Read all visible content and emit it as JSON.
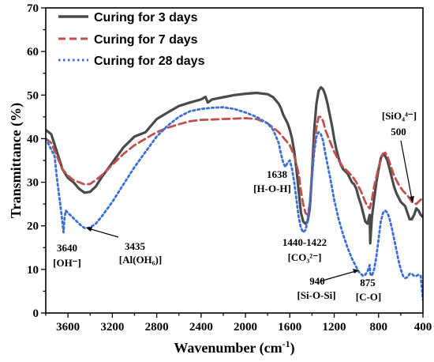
{
  "chart_data": {
    "type": "line",
    "xlabel": "Wavenumber (cm⁻¹)",
    "ylabel": "Transmittance (%)",
    "xlim": [
      3800,
      400
    ],
    "ylim": [
      0,
      70
    ],
    "x_reversed": true,
    "x_ticks": [
      3600,
      3200,
      2800,
      2400,
      2000,
      1600,
      1200,
      800,
      400
    ],
    "y_ticks": [
      0,
      10,
      20,
      30,
      40,
      50,
      60,
      70
    ],
    "grid": false,
    "legend_position": "top-left",
    "series": [
      {
        "name": "Curing for 3 days",
        "color": "#4a4a4a",
        "line_style": "solid",
        "x": [
          3800,
          3750,
          3700,
          3650,
          3600,
          3550,
          3500,
          3450,
          3400,
          3350,
          3300,
          3200,
          3100,
          3000,
          2900,
          2800,
          2700,
          2600,
          2500,
          2400,
          2360,
          2340,
          2300,
          2200,
          2100,
          2000,
          1900,
          1800,
          1750,
          1700,
          1680,
          1660,
          1640,
          1620,
          1600,
          1580,
          1560,
          1540,
          1520,
          1500,
          1480,
          1460,
          1440,
          1420,
          1400,
          1380,
          1360,
          1340,
          1320,
          1300,
          1280,
          1260,
          1240,
          1220,
          1200,
          1180,
          1160,
          1140,
          1120,
          1100,
          1080,
          1060,
          1040,
          1020,
          1000,
          980,
          960,
          940,
          920,
          900,
          880,
          875,
          860,
          840,
          820,
          800,
          780,
          760,
          740,
          720,
          700,
          680,
          660,
          640,
          620,
          600,
          580,
          560,
          540,
          520,
          500,
          480,
          460,
          440,
          420,
          400
        ],
        "values": [
          42,
          41,
          37,
          33,
          31,
          30,
          28.5,
          27.6,
          27.8,
          29,
          31,
          34.5,
          38,
          40.5,
          41.5,
          44.5,
          46,
          47.5,
          48.3,
          49,
          49.6,
          48.3,
          49,
          49.5,
          50,
          50.3,
          50.5,
          50.2,
          49.5,
          48,
          47,
          45.5,
          44.5,
          43.5,
          42,
          40,
          37,
          33,
          28,
          23,
          21,
          20.5,
          21,
          24,
          32,
          42,
          48,
          51,
          51.8,
          51.3,
          50,
          48,
          45.5,
          43,
          40,
          37.5,
          35.5,
          34,
          33,
          32.5,
          32,
          31,
          30,
          29.5,
          28.5,
          26.5,
          25,
          23,
          21,
          20.5,
          22.5,
          16,
          22,
          26,
          30,
          33,
          35.5,
          36.5,
          36,
          35,
          33,
          31,
          29,
          27.5,
          26.5,
          25.5,
          25,
          24.5,
          23,
          21.5,
          21.5,
          22.5,
          24,
          23.5,
          22.5,
          22
        ]
      },
      {
        "name": "Curing for 7 days",
        "color": "#c0504d",
        "line_style": "dashed",
        "x": [
          3800,
          3750,
          3700,
          3650,
          3600,
          3550,
          3500,
          3450,
          3400,
          3350,
          3300,
          3200,
          3100,
          3000,
          2900,
          2800,
          2700,
          2600,
          2500,
          2400,
          2300,
          2200,
          2100,
          2000,
          1900,
          1800,
          1750,
          1700,
          1650,
          1600,
          1560,
          1520,
          1500,
          1480,
          1460,
          1440,
          1420,
          1400,
          1380,
          1360,
          1340,
          1320,
          1300,
          1280,
          1240,
          1200,
          1160,
          1120,
          1080,
          1040,
          1000,
          960,
          920,
          900,
          880,
          860,
          840,
          800,
          760,
          740,
          720,
          700,
          660,
          620,
          580,
          540,
          500,
          460,
          420,
          400
        ],
        "values": [
          40,
          39,
          36,
          33,
          31.5,
          30.5,
          30,
          29.5,
          29.6,
          30.5,
          31.5,
          34,
          36.5,
          38.5,
          40,
          41.5,
          42.5,
          43.3,
          44,
          44.3,
          44.4,
          44.5,
          44.6,
          44.7,
          44.5,
          43.5,
          42.5,
          41.5,
          40,
          38.5,
          36,
          32,
          28,
          25,
          23,
          22.5,
          25,
          32,
          38,
          42.5,
          45,
          45,
          44,
          42,
          39.5,
          37,
          35,
          33.5,
          32.5,
          31.5,
          30,
          28,
          25.5,
          24.5,
          24,
          26,
          29,
          33.5,
          36.5,
          36.8,
          36,
          34.5,
          31.5,
          29.5,
          28,
          27,
          25.5,
          25,
          26,
          26.3
        ]
      },
      {
        "name": "Curing for 28 days",
        "color": "#3a6fd8",
        "line_style": "dotted",
        "x": [
          3800,
          3760,
          3720,
          3700,
          3680,
          3660,
          3640,
          3630,
          3620,
          3600,
          3560,
          3520,
          3480,
          3450,
          3435,
          3400,
          3350,
          3300,
          3200,
          3100,
          3000,
          2900,
          2800,
          2700,
          2600,
          2500,
          2400,
          2300,
          2200,
          2100,
          2000,
          1900,
          1800,
          1750,
          1700,
          1680,
          1660,
          1640,
          1620,
          1600,
          1580,
          1560,
          1540,
          1520,
          1500,
          1480,
          1460,
          1440,
          1420,
          1400,
          1380,
          1360,
          1340,
          1320,
          1300,
          1280,
          1240,
          1200,
          1160,
          1120,
          1080,
          1040,
          1000,
          980,
          960,
          940,
          920,
          900,
          880,
          875,
          860,
          840,
          820,
          800,
          780,
          760,
          740,
          720,
          700,
          680,
          660,
          640,
          620,
          600,
          580,
          560,
          540,
          520,
          500,
          480,
          460,
          440,
          420,
          400
        ],
        "values": [
          40,
          38,
          36,
          31,
          27,
          23,
          18.5,
          22,
          23.5,
          23,
          22,
          21,
          20,
          19.5,
          19.5,
          19.6,
          20.5,
          22,
          25.5,
          29.5,
          33.5,
          37,
          40.5,
          43,
          45,
          46.3,
          46.8,
          47.1,
          47.2,
          46.8,
          46,
          45,
          43.5,
          42,
          39,
          36.5,
          34.5,
          33.5,
          34.5,
          35,
          33,
          30,
          26,
          22,
          19.5,
          18.5,
          19,
          21,
          25,
          31,
          37,
          40.5,
          41.5,
          41,
          39.5,
          36.5,
          31.5,
          26,
          21.5,
          18,
          15,
          12.5,
          10.5,
          9.5,
          9,
          8.5,
          8.8,
          9.5,
          11,
          9,
          8.5,
          10,
          13,
          17,
          21,
          23,
          23.5,
          23,
          21.5,
          19.5,
          17,
          14.5,
          12,
          10,
          8.5,
          8,
          8.2,
          9,
          9,
          8.5,
          8.5,
          8.8,
          8.5,
          3
        ]
      }
    ],
    "annotations": [
      {
        "label": "3640",
        "sublabel": "[OH⁻]"
      },
      {
        "label": "3435",
        "sublabel": "[Al(OH₆)]"
      },
      {
        "label": "1638",
        "sublabel": "[H-O-H]"
      },
      {
        "label": "1440-1422",
        "sublabel": "[CO₃²⁻]"
      },
      {
        "label": "940",
        "sublabel": "[Si-O-Si]"
      },
      {
        "label": "875",
        "sublabel": "[C-O]"
      },
      {
        "label": "[SiO₄⁴⁻]",
        "sublabel": "500"
      }
    ]
  }
}
